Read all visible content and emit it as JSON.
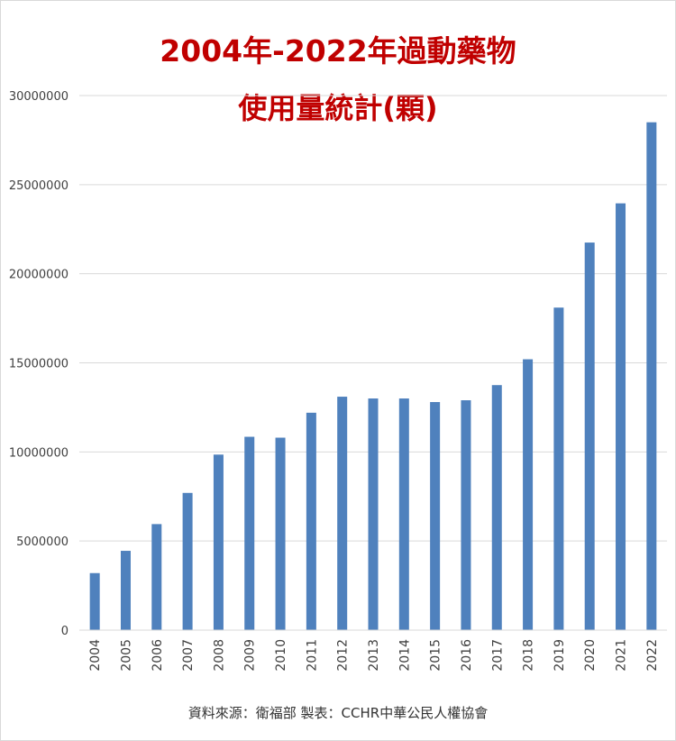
{
  "chart_data": {
    "type": "bar",
    "title": "2004年-2022年過動藥物",
    "subtitle": "使用量統計(顆)",
    "categories": [
      "2004",
      "2005",
      "2006",
      "2007",
      "2008",
      "2009",
      "2010",
      "2011",
      "2012",
      "2013",
      "2014",
      "2015",
      "2016",
      "2017",
      "2018",
      "2019",
      "2020",
      "2021",
      "2022"
    ],
    "values": [
      3200000,
      4450000,
      5950000,
      7700000,
      9850000,
      10850000,
      10800000,
      12200000,
      13100000,
      13000000,
      13000000,
      12800000,
      12900000,
      13750000,
      15200000,
      18100000,
      21750000,
      23950000,
      28500000
    ],
    "yticks": [
      0,
      5000000,
      10000000,
      15000000,
      20000000,
      25000000,
      30000000
    ],
    "ylim": [
      0,
      30000000
    ],
    "xlabel": "",
    "ylabel": "",
    "grid": true,
    "bar_color": "#4f81bd",
    "gridline_color": "#d9d9d9",
    "source": "資料來源：衛福部  製表：CCHR中華公民人權協會"
  }
}
